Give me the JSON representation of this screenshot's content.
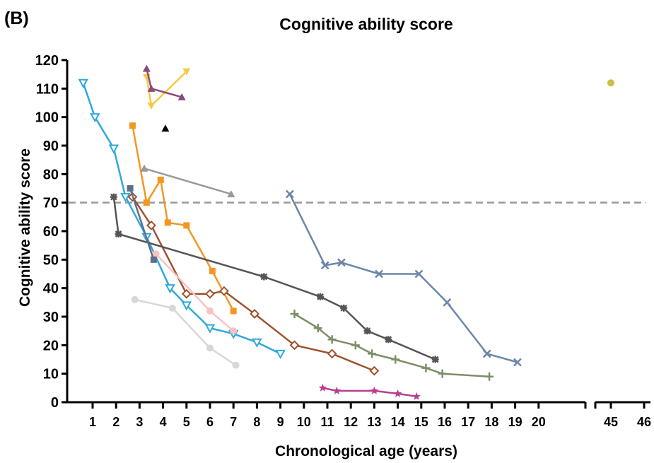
{
  "panel_label": "(B)",
  "chart_data": {
    "type": "line",
    "title": "Cognitive ability score",
    "xlabel": "Chronological age (years)",
    "ylabel": "Cognitive ability score",
    "ylim": [
      0,
      120
    ],
    "xlim_main": [
      0.5,
      21.0
    ],
    "xlim_break": [
      44.5,
      46.5
    ],
    "axis_break": "between 21 and 44.5 years",
    "y_ticks": [
      "0",
      "10",
      "20",
      "30",
      "40",
      "50",
      "60",
      "70",
      "80",
      "90",
      "100",
      "110",
      "120"
    ],
    "x_ticks": [
      "1",
      "2",
      "3",
      "4",
      "5",
      "6",
      "7",
      "8",
      "9",
      "10",
      "11",
      "12",
      "13",
      "14",
      "15",
      "16",
      "17",
      "18",
      "19",
      "20",
      "45",
      "46"
    ],
    "reference_line": {
      "y": 70,
      "style": "dashed",
      "color": "#9a9a9a"
    },
    "grid": false,
    "legend": "none",
    "series": [
      {
        "color": "#2fa7dc",
        "marker": "triangle-down-open",
        "points": [
          [
            0.6,
            112
          ],
          [
            1.1,
            100
          ],
          [
            1.9,
            89
          ],
          [
            2.4,
            72
          ],
          [
            3.3,
            58
          ],
          [
            4.3,
            40
          ],
          [
            5.0,
            34
          ],
          [
            6.0,
            26
          ],
          [
            7.0,
            24
          ],
          [
            8.0,
            21
          ],
          [
            9.0,
            17
          ]
        ]
      },
      {
        "color": "#f39622",
        "marker": "square",
        "points": [
          [
            2.7,
            97
          ],
          [
            3.3,
            70
          ],
          [
            3.9,
            78
          ],
          [
            4.2,
            63
          ],
          [
            5.0,
            62
          ],
          [
            6.1,
            46
          ],
          [
            7.0,
            32
          ]
        ]
      },
      {
        "color": "#a0522d",
        "marker": "diamond-open",
        "points": [
          [
            2.7,
            72
          ],
          [
            3.5,
            62
          ],
          [
            5.0,
            38
          ],
          [
            6.0,
            38
          ],
          [
            6.6,
            39
          ],
          [
            7.9,
            31
          ],
          [
            9.6,
            20
          ],
          [
            11.2,
            17
          ],
          [
            13.0,
            11
          ]
        ]
      },
      {
        "color": "#555555",
        "marker": "star-cross",
        "points": [
          [
            1.9,
            72
          ],
          [
            2.1,
            59
          ],
          [
            8.3,
            44
          ],
          [
            10.7,
            37
          ],
          [
            11.7,
            33
          ],
          [
            12.7,
            25
          ],
          [
            13.6,
            22
          ],
          [
            15.6,
            15
          ]
        ]
      },
      {
        "color": "#6b86a8",
        "marker": "x",
        "points": [
          [
            9.4,
            73
          ],
          [
            10.9,
            48
          ],
          [
            11.6,
            49
          ],
          [
            13.2,
            45
          ],
          [
            14.9,
            45
          ],
          [
            16.1,
            35
          ],
          [
            17.8,
            17
          ],
          [
            19.1,
            14
          ]
        ]
      },
      {
        "color": "#7c8f68",
        "marker": "plus",
        "points": [
          [
            9.6,
            31
          ],
          [
            10.6,
            26
          ],
          [
            11.2,
            22
          ],
          [
            12.2,
            20
          ],
          [
            12.9,
            17
          ],
          [
            13.9,
            15
          ],
          [
            15.2,
            12
          ],
          [
            15.9,
            10
          ],
          [
            17.9,
            9
          ]
        ]
      },
      {
        "color": "#b5418f",
        "marker": "star",
        "points": [
          [
            10.8,
            5
          ],
          [
            11.4,
            4
          ],
          [
            13.0,
            4
          ],
          [
            14.0,
            3
          ],
          [
            14.8,
            2
          ]
        ]
      },
      {
        "color": "#f7c2c2",
        "marker": "circle",
        "points": [
          [
            3.7,
            52
          ],
          [
            6.0,
            32
          ],
          [
            7.0,
            25
          ]
        ]
      },
      {
        "color": "#d7d7d7",
        "marker": "circle",
        "points": [
          [
            2.8,
            36
          ],
          [
            4.4,
            33
          ],
          [
            6.0,
            19
          ],
          [
            7.1,
            13
          ]
        ]
      },
      {
        "color": "#999999",
        "marker": "triangle-up",
        "points": [
          [
            3.2,
            82
          ],
          [
            6.9,
            73
          ]
        ]
      },
      {
        "color": "#f6c945",
        "marker": "triangle-down",
        "points": [
          [
            3.3,
            114
          ],
          [
            3.5,
            104
          ],
          [
            5.0,
            116
          ]
        ]
      },
      {
        "color": "#8b4a7a",
        "marker": "triangle-up",
        "points": [
          [
            3.3,
            117
          ],
          [
            3.5,
            110
          ],
          [
            4.8,
            107
          ]
        ]
      },
      {
        "color": "#000000",
        "marker": "triangle-up",
        "points": [
          [
            4.1,
            96
          ]
        ]
      },
      {
        "color": "#5d6f8b",
        "marker": "square",
        "points": [
          [
            2.6,
            75
          ],
          [
            3.6,
            50
          ]
        ]
      },
      {
        "color": "#c8bf47",
        "marker": "circle",
        "points": [
          [
            45.0,
            112
          ]
        ]
      }
    ]
  }
}
